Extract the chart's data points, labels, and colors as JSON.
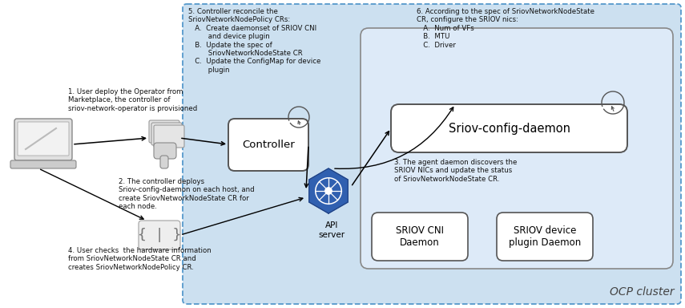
{
  "bg_color": "#ffffff",
  "cluster_bg": "#cce0f0",
  "cluster_border": "#5599cc",
  "inner_box_bg": "#ddeaf8",
  "inner_box_border": "#888888",
  "box_bg": "#ffffff",
  "box_border": "#555555",
  "step1_text": "1. User deploy the Operator from\nMarketplace, the controller of\nsriov-network-operator is provisioned",
  "step2_text": "2. The controller deploys\nSriov-config-daemon on each host, and\ncreate SriovNetworkNodeState CR for\neach node.",
  "step3_text": "3. The agent daemon discovers the\nSRIOV NICs and update the status\nof SriovNetworkNodeState CR.",
  "step4_text": "4. User checks  the hardware information\nfrom SriovNetworkNodeState CR and\ncreates SriovNetworkNodePolicy CR.",
  "step5_text": "5. Controller reconcile the\nSriovNetworkNodePolicy CRs:\n   A.  Create daemonset of SRIOV CNI\n         and device plugin\n   B.  Update the spec of\n         SriovNetworkNodeState CR\n   C.  Update the ConfigMap for device\n         plugin",
  "step6_text": "6. According to the spec of SriovNetworkNodeState\nCR, configure the SRIOV nics:\n   A.  Num of VFs\n   B.  MTU\n   C.  Driver",
  "controller_label": "Controller",
  "daemon_label": "Sriov-config-daemon",
  "api_label": "API\nserver",
  "cni_label": "SRIOV CNI\nDaemon",
  "plugin_label": "SRIOV device\nplugin Daemon",
  "ocp_label": "OCP cluster"
}
